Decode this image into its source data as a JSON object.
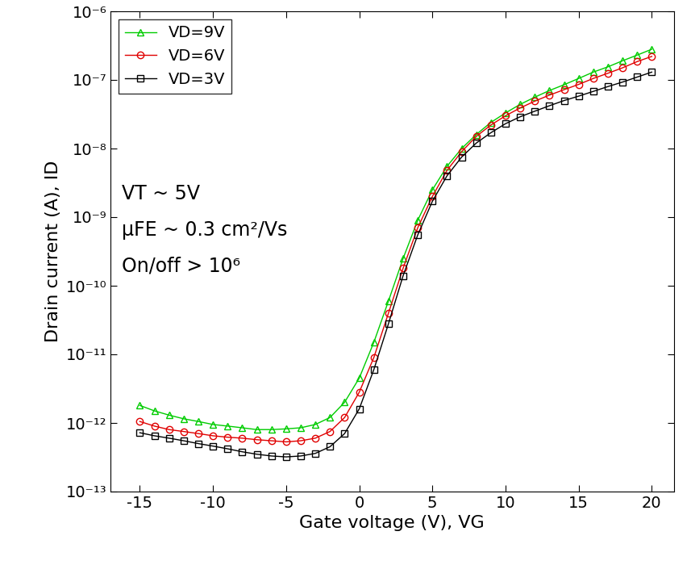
{
  "chart_data": {
    "type": "line",
    "x_label": "Gate voltage (V), VG",
    "y_label": "Drain current (A), ID",
    "log": "y",
    "legend": "upper left",
    "annotations": [
      "VT ~ 5V",
      "μFE ~ 0.3 cm²/Vs",
      "On/off > 10⁶"
    ],
    "xlim": [
      -17,
      21.5
    ],
    "xticks": [
      -15,
      -10,
      -5,
      0,
      5,
      10,
      15,
      20
    ],
    "ylim": [
      1e-13,
      1e-06
    ],
    "yticks": [
      {
        "value": 1e-13,
        "label": "10⁻¹³"
      },
      {
        "value": 1e-12,
        "label": "10⁻¹²"
      },
      {
        "value": 1e-11,
        "label": "10⁻¹¹"
      },
      {
        "value": 1e-10,
        "label": "10⁻¹⁰"
      },
      {
        "value": 1e-09,
        "label": "10⁻⁹"
      },
      {
        "value": 1e-08,
        "label": "10⁻⁸"
      },
      {
        "value": 1e-07,
        "label": "10⁻⁷"
      },
      {
        "value": 1e-06,
        "label": "10⁻⁶"
      }
    ],
    "x": [
      -15,
      -14,
      -13,
      -12,
      -11,
      -10,
      -9,
      -8,
      -7,
      -6,
      -5,
      -4,
      -3,
      -2,
      -1,
      0,
      1,
      2,
      3,
      4,
      5,
      6,
      7,
      8,
      9,
      10,
      11,
      12,
      13,
      14,
      15,
      16,
      17,
      18,
      19,
      20
    ],
    "series": [
      {
        "name": "VD=9V",
        "color": "#00cc00",
        "marker": "triangle",
        "values": [
          1.8e-12,
          1.5e-12,
          1.3e-12,
          1.15e-12,
          1.05e-12,
          9.5e-13,
          9e-13,
          8.5e-13,
          8e-13,
          8e-13,
          8.2e-13,
          8.5e-13,
          9.5e-13,
          1.2e-12,
          2e-12,
          4.5e-12,
          1.5e-11,
          6e-11,
          2.5e-10,
          9e-10,
          2.5e-09,
          5.5e-09,
          1e-08,
          1.6e-08,
          2.4e-08,
          3.3e-08,
          4.4e-08,
          5.6e-08,
          7e-08,
          8.5e-08,
          1.05e-07,
          1.3e-07,
          1.55e-07,
          1.9e-07,
          2.3e-07,
          2.8e-07
        ]
      },
      {
        "name": "VD=6V",
        "color": "#e00000",
        "marker": "circle",
        "values": [
          1.05e-12,
          9e-13,
          8e-13,
          7.5e-13,
          7e-13,
          6.5e-13,
          6.2e-13,
          6e-13,
          5.7e-13,
          5.5e-13,
          5.3e-13,
          5.5e-13,
          6e-13,
          7.5e-13,
          1.2e-12,
          2.8e-12,
          9e-12,
          4e-11,
          1.8e-10,
          7e-10,
          2e-09,
          4.8e-09,
          9e-09,
          1.5e-08,
          2.2e-08,
          3e-08,
          3.9e-08,
          4.9e-08,
          6e-08,
          7.2e-08,
          8.6e-08,
          1.05e-07,
          1.25e-07,
          1.5e-07,
          1.85e-07,
          2.2e-07
        ]
      },
      {
        "name": "VD=3V",
        "color": "#000000",
        "marker": "square",
        "values": [
          7.2e-13,
          6.5e-13,
          6e-13,
          5.5e-13,
          5e-13,
          4.6e-13,
          4.2e-13,
          3.8e-13,
          3.5e-13,
          3.3e-13,
          3.2e-13,
          3.3e-13,
          3.6e-13,
          4.5e-13,
          7e-13,
          1.6e-12,
          6e-12,
          2.8e-11,
          1.4e-10,
          5.5e-10,
          1.7e-09,
          4e-09,
          7.5e-09,
          1.2e-08,
          1.7e-08,
          2.3e-08,
          2.9e-08,
          3.5e-08,
          4.2e-08,
          5e-08,
          5.8e-08,
          6.8e-08,
          8e-08,
          9.3e-08,
          1.1e-07,
          1.3e-07
        ]
      }
    ]
  }
}
